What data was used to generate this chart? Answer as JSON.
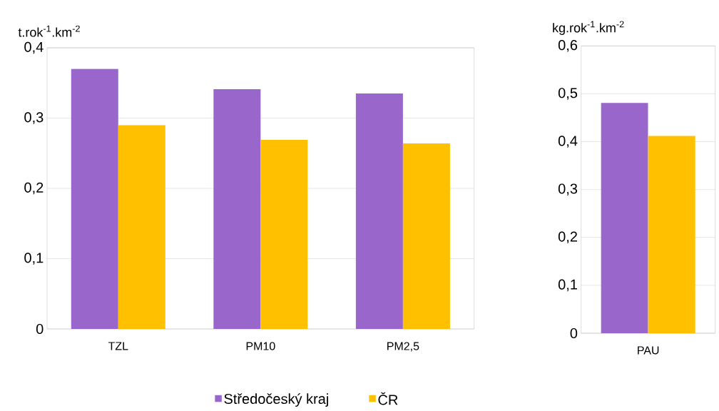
{
  "chart_data": [
    {
      "type": "bar",
      "ylabel": "t.rok$^{-1}$.km$^{-2}$",
      "categories": [
        "TZL",
        "PM10",
        "PM2,5"
      ],
      "series": [
        {
          "name": "Středočeský kraj",
          "color": "#9966cc",
          "values": [
            0.37,
            0.341,
            0.335
          ]
        },
        {
          "name": "ČR",
          "color": "#ffc000",
          "values": [
            0.29,
            0.269,
            0.264
          ]
        }
      ],
      "ylim": [
        0,
        0.4
      ],
      "yticks": [
        0,
        {
          "value": 0.1,
          "label": "0,1"
        },
        {
          "value": 0.2,
          "label": "0,2"
        },
        {
          "value": 0.3,
          "label": "0,3"
        },
        {
          "value": 0.4,
          "label": "0,4"
        }
      ],
      "grid": "y",
      "legend": "bottom"
    },
    {
      "type": "bar",
      "ylabel": "kg.rok$^{-1}$.km$^{-2}$",
      "categories": [
        "PAU"
      ],
      "series": [
        {
          "color": "#9966cc",
          "values": [
            0.481
          ]
        },
        {
          "color": "#ffc000",
          "values": [
            0.412
          ]
        }
      ],
      "ylim": [
        0,
        0.6
      ],
      "yticks": [
        0,
        {
          "value": 0.1,
          "label": "0,1"
        },
        {
          "value": 0.2,
          "label": "0,2"
        },
        {
          "value": 0.3,
          "label": "0,3"
        },
        {
          "value": 0.4,
          "label": "0,4"
        },
        {
          "value": 0.5,
          "label": "0,5"
        },
        {
          "value": 0.6,
          "label": "0,6"
        }
      ],
      "grid": "y"
    }
  ]
}
